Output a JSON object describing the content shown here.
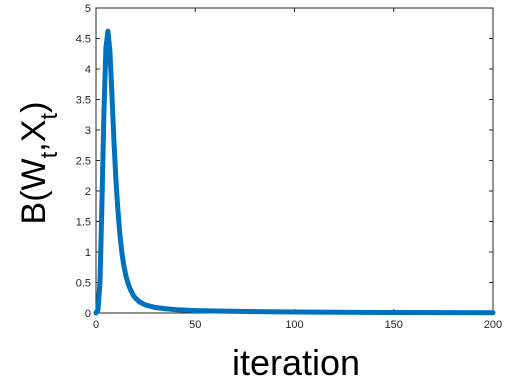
{
  "chart_data": {
    "type": "line",
    "title": "",
    "xlabel": "iteration",
    "ylabel": {
      "prefix": "B(W",
      "sub1": "t",
      "mid": ",X",
      "sub2": "t",
      "suffix": ")"
    },
    "xlim": [
      0,
      200
    ],
    "ylim": [
      0,
      5
    ],
    "xticks": [
      "0",
      "50",
      "100",
      "150",
      "200"
    ],
    "yticks": [
      "0",
      "0.5",
      "1",
      "1.5",
      "2",
      "2.5",
      "3",
      "3.5",
      "4",
      "4.5",
      "5"
    ],
    "grid": false,
    "color": "#0072BD",
    "series": [
      {
        "x": [
          0,
          1,
          2,
          3,
          4,
          5,
          6,
          7,
          8,
          9,
          10,
          11,
          12,
          13,
          14,
          15,
          16,
          17,
          18,
          19,
          20,
          22,
          25,
          30,
          35,
          40,
          50,
          60,
          80,
          100,
          150,
          200
        ],
        "values": [
          0,
          0.05,
          0.5,
          1.8,
          3.3,
          4.35,
          4.62,
          4.3,
          3.6,
          2.85,
          2.2,
          1.7,
          1.3,
          1.0,
          0.78,
          0.62,
          0.5,
          0.41,
          0.34,
          0.28,
          0.24,
          0.18,
          0.13,
          0.09,
          0.07,
          0.055,
          0.04,
          0.032,
          0.022,
          0.016,
          0.008,
          0.004
        ]
      }
    ]
  }
}
